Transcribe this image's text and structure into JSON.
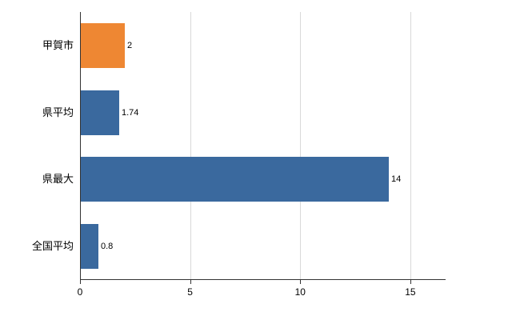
{
  "chart_data": {
    "type": "bar",
    "orientation": "horizontal",
    "title": "",
    "xlabel": "",
    "ylabel": "",
    "categories": [
      "甲賀市",
      "県平均",
      "県最大",
      "全国平均"
    ],
    "values": [
      2,
      1.74,
      14,
      0.8
    ],
    "value_labels": [
      "2",
      "1.74",
      "14",
      "0.8"
    ],
    "bar_colors": [
      "#ee8733",
      "#3a699e",
      "#3a699e",
      "#3a699e"
    ],
    "xlim": [
      0,
      16.6
    ],
    "xticks": [
      0,
      5,
      10,
      15
    ],
    "xtick_labels": [
      "0",
      "5",
      "10",
      "15"
    ],
    "grid": "vertical",
    "legend_position": "none"
  },
  "colors": {
    "gridline": "#d9d9d9",
    "axis": "#333333",
    "background": "#ffffff",
    "text": "#000000"
  }
}
